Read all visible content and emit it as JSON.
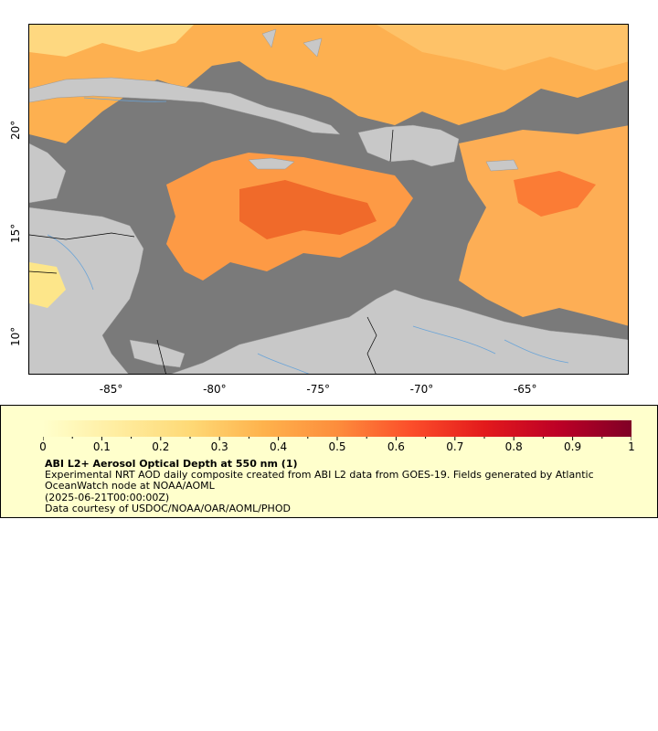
{
  "map": {
    "colors": {
      "land": "#c8c8c8",
      "ocean_nodata": "#7a7a7a",
      "rivers": "#6aa4d8",
      "borders": "#000000"
    },
    "lon_range": [
      -89,
      -60
    ],
    "lat_range": [
      8,
      25
    ],
    "x_ticks": [
      "-85°",
      "-80°",
      "-75°",
      "-70°",
      "-65°"
    ],
    "y_ticks": [
      "20°",
      "15°",
      "10°"
    ]
  },
  "legend": {
    "colorbar_ticks": [
      "0",
      "0.1",
      "0.2",
      "0.3",
      "0.4",
      "0.5",
      "0.6",
      "0.7",
      "0.8",
      "0.9",
      "1"
    ],
    "colorbar_colors": [
      "#ffffcc",
      "#ffeda0",
      "#fed976",
      "#feb24c",
      "#fd8d3c",
      "#fc4e2a",
      "#e31a1c",
      "#bd0026",
      "#800026"
    ],
    "title": "ABI L2+ Aerosol Optical Depth at 550 nm (1)",
    "description": "Experimental NRT AOD daily composite created from ABI L2 data from GOES-19. Fields generated by Atlantic OceanWatch node at NOAA/AOML",
    "date": "(2025-06-21T00:00:00Z)",
    "credit": "Data courtesy of USDOC/NOAA/OAR/AOML/PHOD"
  }
}
